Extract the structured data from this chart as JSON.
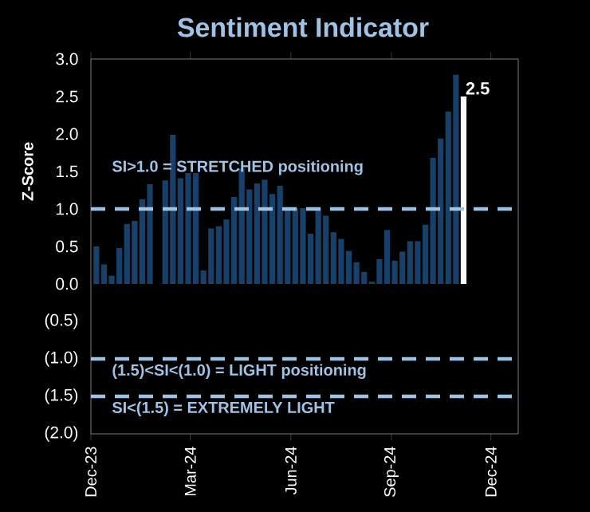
{
  "chart_data": {
    "type": "bar",
    "title": "Sentiment Indicator",
    "ylabel": "Z-Score",
    "x": [
      "2023-12-06",
      "2023-12-13",
      "2023-12-20",
      "2023-12-27",
      "2024-01-03",
      "2024-01-10",
      "2024-01-17",
      "2024-01-24",
      "2024-02-07",
      "2024-02-14",
      "2024-02-21",
      "2024-02-28",
      "2024-03-06",
      "2024-03-13",
      "2024-03-20",
      "2024-03-27",
      "2024-04-03",
      "2024-04-10",
      "2024-04-17",
      "2024-04-24",
      "2024-05-01",
      "2024-05-08",
      "2024-05-15",
      "2024-05-22",
      "2024-05-29",
      "2024-06-05",
      "2024-06-12",
      "2024-06-19",
      "2024-06-26",
      "2024-07-03",
      "2024-07-10",
      "2024-07-17",
      "2024-07-24",
      "2024-07-31",
      "2024-08-07",
      "2024-08-14",
      "2024-08-21",
      "2024-08-28",
      "2024-09-04",
      "2024-09-11",
      "2024-09-18",
      "2024-09-25",
      "2024-10-02",
      "2024-10-09",
      "2024-10-16",
      "2024-10-23",
      "2024-10-30",
      "2024-11-06"
    ],
    "values": [
      0.5,
      0.26,
      0.11,
      0.48,
      0.8,
      0.84,
      1.13,
      1.33,
      1.38,
      1.99,
      1.41,
      1.48,
      1.48,
      0.18,
      0.74,
      0.77,
      0.86,
      1.16,
      1.54,
      1.26,
      1.34,
      1.39,
      1.2,
      1.31,
      1.01,
      1.01,
      1.01,
      0.67,
      1.01,
      0.91,
      0.69,
      0.6,
      0.44,
      0.29,
      0.16,
      0.03,
      0.33,
      0.72,
      0.31,
      0.43,
      0.57,
      0.57,
      0.79,
      1.68,
      1.94,
      2.3,
      2.79,
      2.5
    ],
    "colors": [
      "#17406a",
      "#17406a",
      "#17406a",
      "#17406a",
      "#17406a",
      "#17406a",
      "#17406a",
      "#17406a",
      "#17406a",
      "#17406a",
      "#17406a",
      "#17406a",
      "#17406a",
      "#17406a",
      "#17406a",
      "#17406a",
      "#17406a",
      "#17406a",
      "#17406a",
      "#17406a",
      "#17406a",
      "#17406a",
      "#17406a",
      "#17406a",
      "#17406a",
      "#17406a",
      "#17406a",
      "#17406a",
      "#17406a",
      "#17406a",
      "#17406a",
      "#17406a",
      "#17406a",
      "#17406a",
      "#17406a",
      "#17406a",
      "#17406a",
      "#17406a",
      "#17406a",
      "#17406a",
      "#17406a",
      "#17406a",
      "#17406a",
      "#17406a",
      "#17406a",
      "#17406a",
      "#17406a",
      "#ffffff"
    ],
    "value_labels": [
      null,
      null,
      null,
      null,
      null,
      null,
      null,
      null,
      null,
      null,
      null,
      null,
      null,
      null,
      null,
      null,
      null,
      null,
      null,
      null,
      null,
      null,
      null,
      null,
      null,
      null,
      null,
      null,
      null,
      null,
      null,
      null,
      null,
      null,
      null,
      null,
      null,
      null,
      null,
      null,
      null,
      null,
      null,
      null,
      null,
      null,
      null,
      "2.5"
    ],
    "xlim": [
      "2023-12-01",
      "2024-12-26"
    ],
    "xticks": [
      {
        "value": "2023-12-01",
        "label": "Dec-23"
      },
      {
        "value": "2024-03-01",
        "label": "Mar-24"
      },
      {
        "value": "2024-06-01",
        "label": "Jun-24"
      },
      {
        "value": "2024-09-01",
        "label": "Sep-24"
      },
      {
        "value": "2024-12-01",
        "label": "Dec-24"
      }
    ],
    "ylim": [
      -2,
      3
    ],
    "yticks": [
      {
        "value": 3,
        "label": "3.0"
      },
      {
        "value": 2.5,
        "label": "2.5"
      },
      {
        "value": 2,
        "label": "2.0"
      },
      {
        "value": 1.5,
        "label": "1.5"
      },
      {
        "value": 1,
        "label": "1.0"
      },
      {
        "value": 0.5,
        "label": "0.5"
      },
      {
        "value": 0,
        "label": "0.0"
      },
      {
        "value": -0.5,
        "label": "(0.5)"
      },
      {
        "value": -1,
        "label": "(1.0)"
      },
      {
        "value": -1.5,
        "label": "(1.5)"
      },
      {
        "value": -2,
        "label": "(2.0)"
      }
    ],
    "ref_lines": [
      {
        "axis": "y",
        "value": 1,
        "label": "SI>1.0 = STRETCHED positioning",
        "color": "#9dc3e6",
        "line_style": "dashed"
      },
      {
        "axis": "y",
        "value": -1,
        "label": "(1.5)<SI<(1.0) = LIGHT positioning",
        "color": "#9dc3e6",
        "line_style": "dashed"
      },
      {
        "axis": "y",
        "value": -1.5,
        "label": "SI<(1.5) = EXTREMELY LIGHT",
        "color": "#9dc3e6",
        "line_style": "dashed"
      }
    ],
    "grid": false
  }
}
